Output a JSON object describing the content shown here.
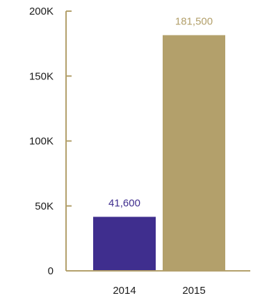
{
  "chart_data": {
    "type": "bar",
    "categories": [
      "2014",
      "2015"
    ],
    "values": [
      41600,
      181500
    ],
    "data_labels": [
      "41,600",
      "181,500"
    ],
    "ylim": [
      0,
      200000
    ],
    "yticks": [
      0,
      50000,
      100000,
      150000,
      200000
    ],
    "ytick_labels": [
      "0",
      "50K",
      "100K",
      "150K",
      "200K"
    ],
    "grid": false,
    "legend": "none",
    "colors": {
      "bars": [
        "#3f2e8e",
        "#b3a06b"
      ],
      "axis": "#b3a06b",
      "tick_text": "#1a1a1a"
    }
  }
}
